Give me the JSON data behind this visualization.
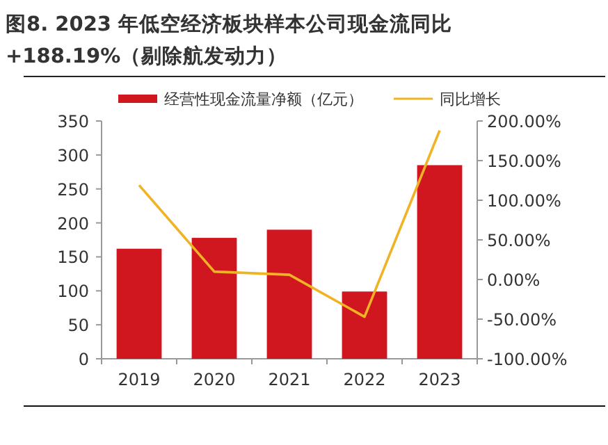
{
  "chart_data": {
    "type": "bar",
    "title": "图8. 2023 年低空经济板块样本公司现金流同比 +188.19%（剔除航发动力）",
    "categories": [
      "2019",
      "2020",
      "2021",
      "2022",
      "2023"
    ],
    "series": [
      {
        "name": "经营性现金流量净额（亿元）",
        "color": "#d0171f",
        "values": [
          162,
          178,
          190,
          99,
          285
        ]
      },
      {
        "name": "同比增长",
        "type": "line",
        "axis": "y2",
        "color": "#f0b323",
        "values": [
          119,
          10,
          6,
          -47,
          188
        ]
      }
    ],
    "ylim": [
      0,
      350
    ],
    "yticks": [
      0,
      50,
      100,
      150,
      200,
      250,
      300,
      350
    ],
    "y2lim": [
      -100,
      200
    ],
    "y2ticks": [
      {
        "value": -100,
        "label": "-100.00%"
      },
      {
        "value": -50,
        "label": "-50.00%"
      },
      {
        "value": 0,
        "label": "0.00%"
      },
      {
        "value": 50,
        "label": "50.00%"
      },
      {
        "value": 100,
        "label": "100.00%"
      },
      {
        "value": 150,
        "label": "150.00%"
      },
      {
        "value": 200,
        "label": "200.00%"
      }
    ],
    "legend": "top",
    "grid": false,
    "marker": "none",
    "line_style": "solid"
  }
}
